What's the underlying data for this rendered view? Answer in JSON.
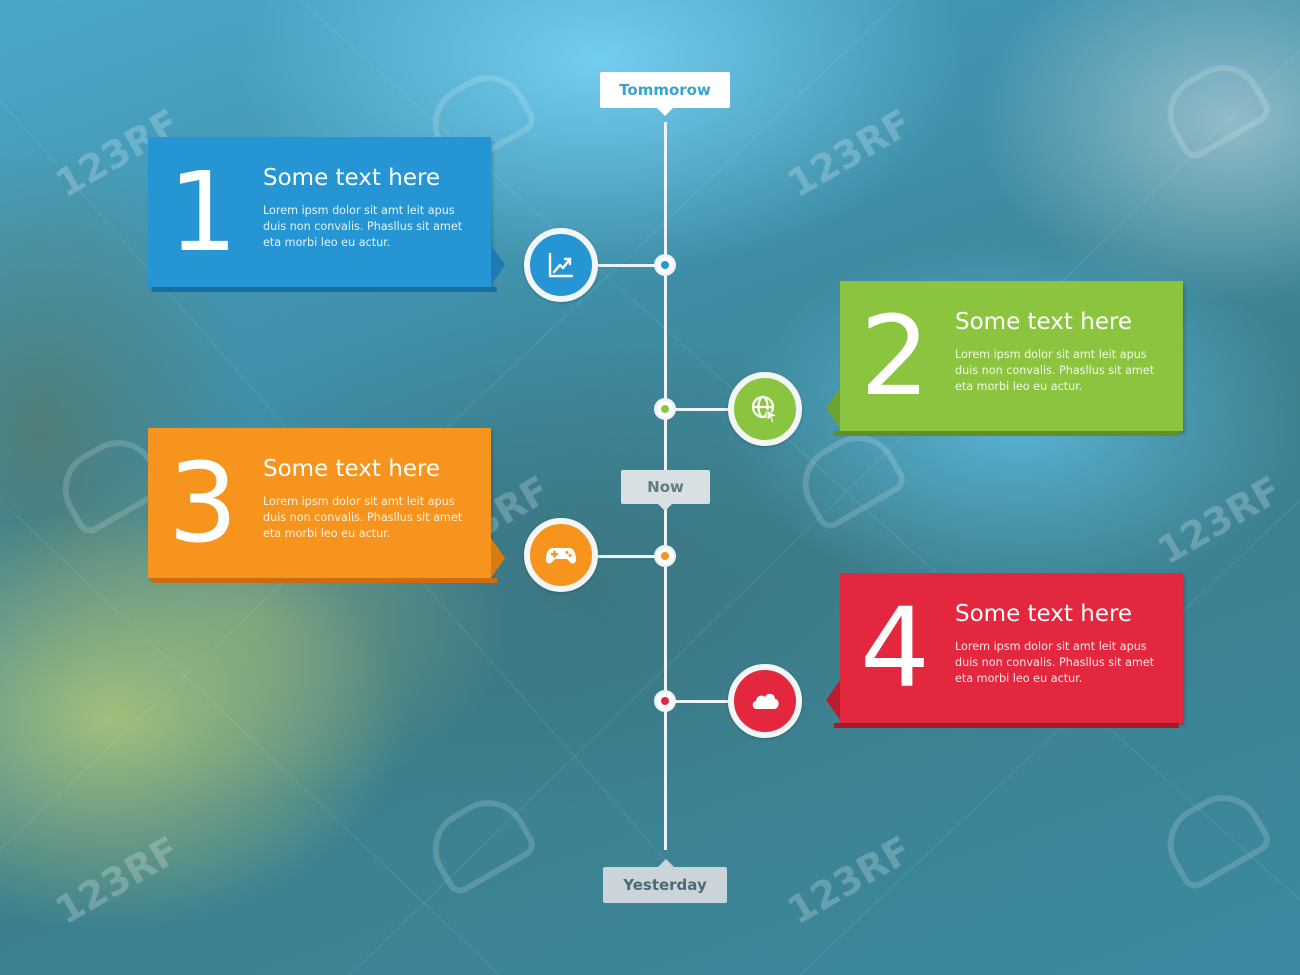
{
  "timeline": {
    "top_label": "Tommorow",
    "middle_label": "Now",
    "bottom_label": "Yesterday"
  },
  "cards": [
    {
      "number": "1",
      "title": "Some text here",
      "body": "Lorem ipsm dolor sit amt leit apus duis non convalis. Phasllus sit amet eta morbi leo eu actur.",
      "color": "#2596d3",
      "icon": "chart-icon"
    },
    {
      "number": "2",
      "title": "Some text here",
      "body": "Lorem ipsm dolor sit amt leit apus duis non convalis. Phasllus sit amet eta morbi leo eu actur.",
      "color": "#8bc53f",
      "icon": "globe-cursor-icon"
    },
    {
      "number": "3",
      "title": "Some text here",
      "body": "Lorem ipsm dolor sit amt leit apus duis non convalis. Phasllus sit amet eta morbi leo eu actur.",
      "color": "#f7941d",
      "icon": "gamepad-icon"
    },
    {
      "number": "4",
      "title": "Some text here",
      "body": "Lorem ipsm dolor sit amt leit apus duis non convalis. Phasllus sit amet eta morbi leo eu actur.",
      "color": "#e2273f",
      "icon": "cloud-icon"
    }
  ],
  "watermark": "123RF"
}
